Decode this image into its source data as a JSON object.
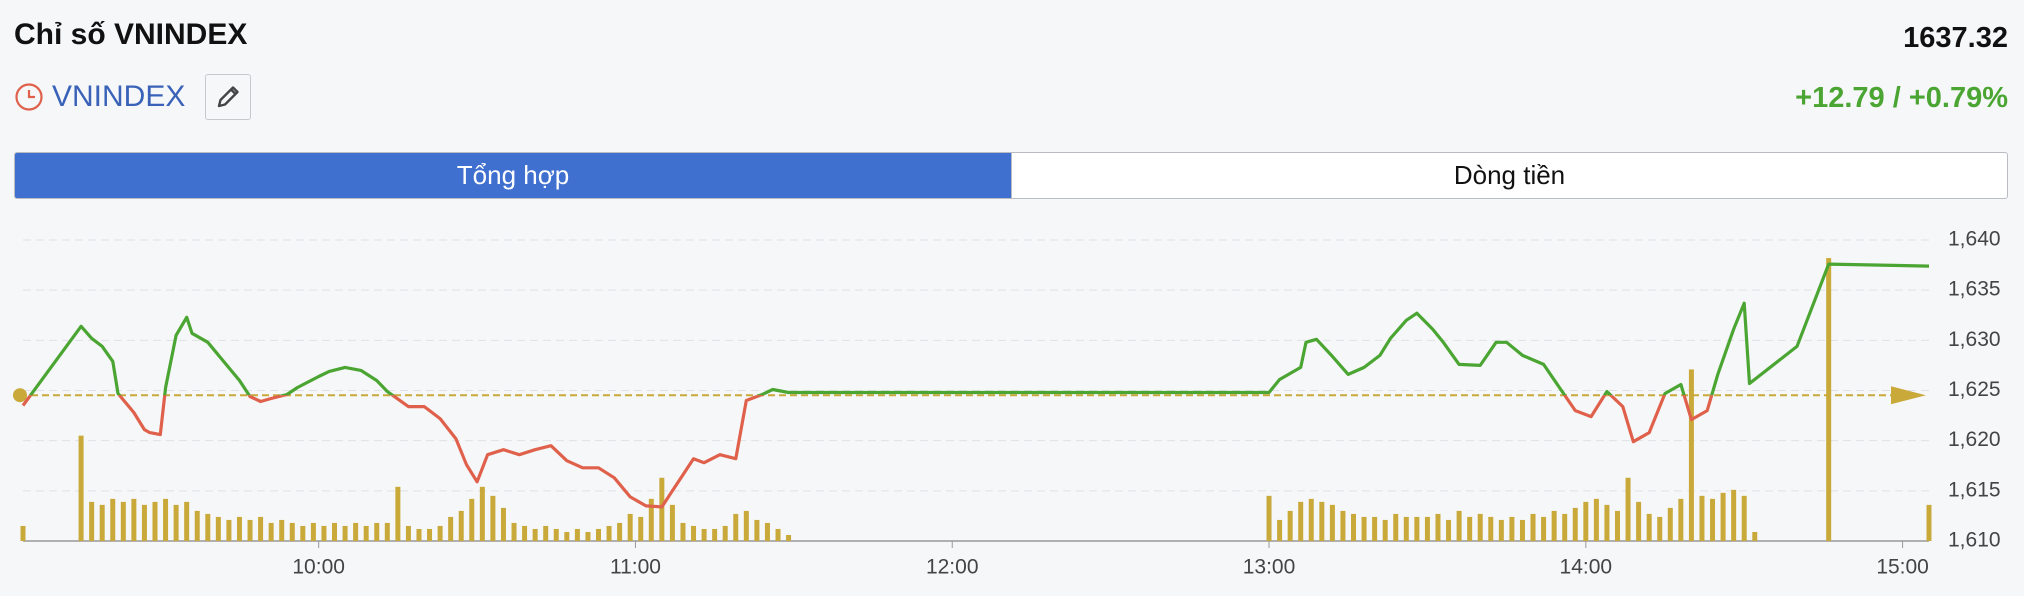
{
  "header": {
    "title": "Chỉ số VNINDEX",
    "symbol": "VNINDEX",
    "price": "1637.32",
    "change": "+12.79 / +0.79%"
  },
  "tabs": [
    "Tổng hợp",
    "Dòng tiền"
  ],
  "chart_data": {
    "type": "line",
    "x": [
      "09:04",
      "09:15",
      "09:17",
      "09:19",
      "09:21",
      "09:22",
      "09:25",
      "09:27",
      "09:28",
      "09:30",
      "09:31",
      "09:33",
      "09:35",
      "09:36",
      "09:39",
      "09:42",
      "09:45",
      "09:47",
      "09:49",
      "09:51",
      "09:54",
      "09:56",
      "10:00",
      "10:02",
      "10:05",
      "10:08",
      "10:11",
      "10:13",
      "10:17",
      "10:20",
      "10:23",
      "10:26",
      "10:28",
      "10:30",
      "10:32",
      "10:35",
      "10:38",
      "10:41",
      "10:44",
      "10:47",
      "10:50",
      "10:53",
      "10:56",
      "10:59",
      "11:02",
      "11:05",
      "11:07",
      "11:09",
      "11:11",
      "11:13",
      "11:16",
      "11:19",
      "11:21",
      "11:24",
      "11:26",
      "11:29",
      "13:00",
      "13:02",
      "13:06",
      "13:07",
      "13:09",
      "13:12",
      "13:15",
      "13:18",
      "13:21",
      "13:23",
      "13:26",
      "13:28",
      "13:31",
      "13:33",
      "13:36",
      "13:40",
      "13:43",
      "13:45",
      "13:48",
      "13:52",
      "13:55",
      "13:58",
      "14:01",
      "14:04",
      "14:07",
      "14:09",
      "14:12",
      "14:15",
      "14:18",
      "14:20",
      "14:23",
      "14:25",
      "14:28",
      "14:30",
      "14:31",
      "14:40",
      "14:46",
      "15:05"
    ],
    "values": [
      1623.5,
      1631.4,
      1630.2,
      1629.4,
      1627.9,
      1624.7,
      1622.8,
      1621.1,
      1620.8,
      1620.6,
      1625.3,
      1630.5,
      1632.3,
      1630.7,
      1629.8,
      1627.9,
      1626.0,
      1624.4,
      1623.9,
      1624.2,
      1624.6,
      1625.3,
      1626.4,
      1626.9,
      1627.3,
      1627.0,
      1626.0,
      1624.9,
      1623.4,
      1623.4,
      1622.2,
      1620.2,
      1617.6,
      1615.9,
      1618.6,
      1619.1,
      1618.6,
      1619.1,
      1619.5,
      1618.0,
      1617.3,
      1617.3,
      1616.3,
      1614.4,
      1613.5,
      1613.4,
      1615.0,
      1616.6,
      1618.2,
      1617.8,
      1618.6,
      1618.2,
      1624.0,
      1624.6,
      1625.1,
      1624.8,
      1624.8,
      1626.1,
      1627.3,
      1629.8,
      1630.1,
      1628.4,
      1626.6,
      1627.3,
      1628.5,
      1630.2,
      1632.0,
      1632.7,
      1631.1,
      1629.8,
      1627.6,
      1627.5,
      1629.8,
      1629.8,
      1628.5,
      1627.6,
      1625.3,
      1623.0,
      1622.4,
      1624.9,
      1623.4,
      1619.9,
      1620.8,
      1624.7,
      1625.6,
      1622.1,
      1623.0,
      1626.6,
      1631.1,
      1633.7,
      1625.7,
      1629.4,
      1637.6,
      1637.4
    ],
    "reference": 1624.53,
    "up_color": "#4ba532",
    "down_color": "#e0614b",
    "reference_color": "#c9a93a",
    "volume": {
      "color": "#c9a93a",
      "axis": "y2",
      "x": [
        "09:04",
        "09:15",
        "09:17",
        "09:19",
        "09:21",
        "09:23",
        "09:25",
        "09:27",
        "09:29",
        "09:31",
        "09:33",
        "09:35",
        "09:37",
        "09:39",
        "09:41",
        "09:43",
        "09:45",
        "09:47",
        "09:49",
        "09:51",
        "09:53",
        "09:55",
        "09:57",
        "09:59",
        "10:01",
        "10:03",
        "10:05",
        "10:07",
        "10:09",
        "10:11",
        "10:13",
        "10:15",
        "10:17",
        "10:19",
        "10:21",
        "10:23",
        "10:25",
        "10:27",
        "10:29",
        "10:31",
        "10:33",
        "10:35",
        "10:37",
        "10:39",
        "10:41",
        "10:43",
        "10:45",
        "10:47",
        "10:49",
        "10:51",
        "10:53",
        "10:55",
        "10:57",
        "10:59",
        "11:01",
        "11:03",
        "11:05",
        "11:07",
        "11:09",
        "11:11",
        "11:13",
        "11:15",
        "11:17",
        "11:19",
        "11:21",
        "11:23",
        "11:25",
        "11:27",
        "11:29",
        "13:00",
        "13:02",
        "13:04",
        "13:06",
        "13:08",
        "13:10",
        "13:12",
        "13:14",
        "13:16",
        "13:18",
        "13:20",
        "13:22",
        "13:24",
        "13:26",
        "13:28",
        "13:30",
        "13:32",
        "13:34",
        "13:36",
        "13:38",
        "13:40",
        "13:42",
        "13:44",
        "13:46",
        "13:48",
        "13:50",
        "13:52",
        "13:54",
        "13:56",
        "13:58",
        "14:00",
        "14:02",
        "14:04",
        "14:06",
        "14:08",
        "14:10",
        "14:12",
        "14:14",
        "14:16",
        "14:18",
        "14:20",
        "14:22",
        "14:24",
        "14:26",
        "14:28",
        "14:30",
        "14:32",
        "14:46",
        "15:05"
      ],
      "values": [
        5,
        35,
        13,
        12,
        14,
        13,
        14,
        12,
        13,
        14,
        12,
        13,
        10,
        9,
        8,
        7,
        8,
        7,
        8,
        6,
        7,
        6,
        5,
        6,
        5,
        6,
        5,
        6,
        5,
        6,
        6,
        18,
        5,
        4,
        4,
        5,
        8,
        10,
        14,
        18,
        15,
        11,
        6,
        5,
        4,
        5,
        4,
        3,
        4,
        3,
        4,
        5,
        6,
        9,
        8,
        14,
        21,
        12,
        6,
        5,
        4,
        4,
        5,
        9,
        10,
        7,
        6,
        4,
        2,
        15,
        7,
        10,
        13,
        14,
        13,
        12,
        10,
        9,
        8,
        8,
        7,
        9,
        8,
        8,
        8,
        9,
        7,
        10,
        8,
        9,
        8,
        7,
        8,
        7,
        9,
        8,
        10,
        9,
        11,
        13,
        14,
        12,
        10,
        21,
        13,
        9,
        8,
        11,
        14,
        57,
        15,
        14,
        16,
        17,
        15,
        3,
        94,
        12
      ]
    },
    "xlim": [
      "09:04",
      "15:05"
    ],
    "xticks": [
      "10:00",
      "11:00",
      "12:00",
      "13:00",
      "14:00",
      "15:00"
    ],
    "ylim": [
      1610,
      1640
    ],
    "y2lim": [
      0,
      100
    ],
    "yticks": [
      {
        "value": 1610,
        "label": "1,610"
      },
      {
        "value": 1615,
        "label": "1,615"
      },
      {
        "value": 1620,
        "label": "1,620"
      },
      {
        "value": 1625,
        "label": "1,625"
      },
      {
        "value": 1630,
        "label": "1,630"
      },
      {
        "value": 1635,
        "label": "1,635"
      },
      {
        "value": 1640,
        "label": "1,640"
      }
    ],
    "grid": true
  }
}
